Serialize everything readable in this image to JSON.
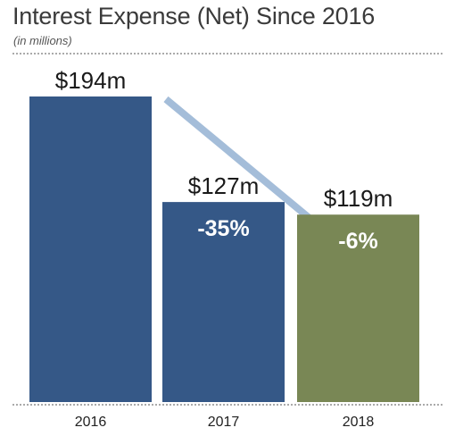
{
  "chart_data": {
    "type": "bar",
    "title": "Interest Expense (Net) Since 2016",
    "subtitle": "(in millions)",
    "categories": [
      "2016",
      "2017",
      "2018"
    ],
    "values": [
      194,
      127,
      119
    ],
    "value_labels": [
      "$194m",
      "$127m",
      "$119m"
    ],
    "change_labels": [
      "",
      "-35%",
      "-6%"
    ],
    "bar_colors": [
      "#355887",
      "#355887",
      "#798755"
    ],
    "arrow_color": "#a4bdd9",
    "ylim": [
      0,
      194
    ],
    "grid": false,
    "legend": "none"
  }
}
